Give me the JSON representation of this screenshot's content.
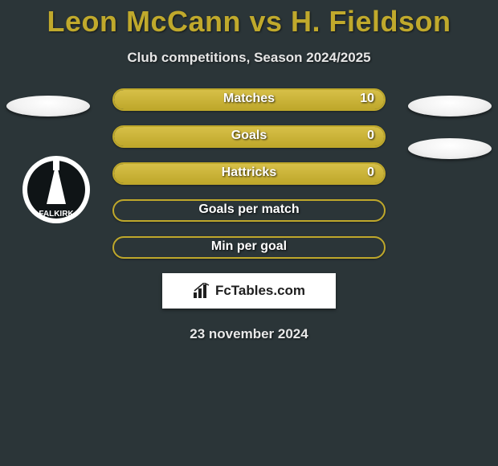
{
  "title": "Leon McCann vs H. Fieldson",
  "subtitle": "Club competitions, Season 2024/2025",
  "colors": {
    "background": "#2b3538",
    "accent": "#c0a92c",
    "row_border": "#bfa82b",
    "row_fill": "#bfa82b",
    "row_fill_light": "#d7c048",
    "text_light": "#e8e8e8"
  },
  "stat_rows": [
    {
      "label": "Matches",
      "value": "10",
      "fill_pct": 100,
      "show_value": true
    },
    {
      "label": "Goals",
      "value": "0",
      "fill_pct": 100,
      "show_value": true
    },
    {
      "label": "Hattricks",
      "value": "0",
      "fill_pct": 100,
      "show_value": true
    },
    {
      "label": "Goals per match",
      "value": "",
      "fill_pct": 0,
      "show_value": false
    },
    {
      "label": "Min per goal",
      "value": "",
      "fill_pct": 0,
      "show_value": false
    }
  ],
  "left_player": {
    "oval_visible": true,
    "club_badge_visible": true,
    "club_badge_text": "FALKIRK"
  },
  "right_player": {
    "ovals_visible": 2
  },
  "brand": {
    "icon": "bars-icon",
    "text": "FcTables.com"
  },
  "date": "23 november 2024"
}
